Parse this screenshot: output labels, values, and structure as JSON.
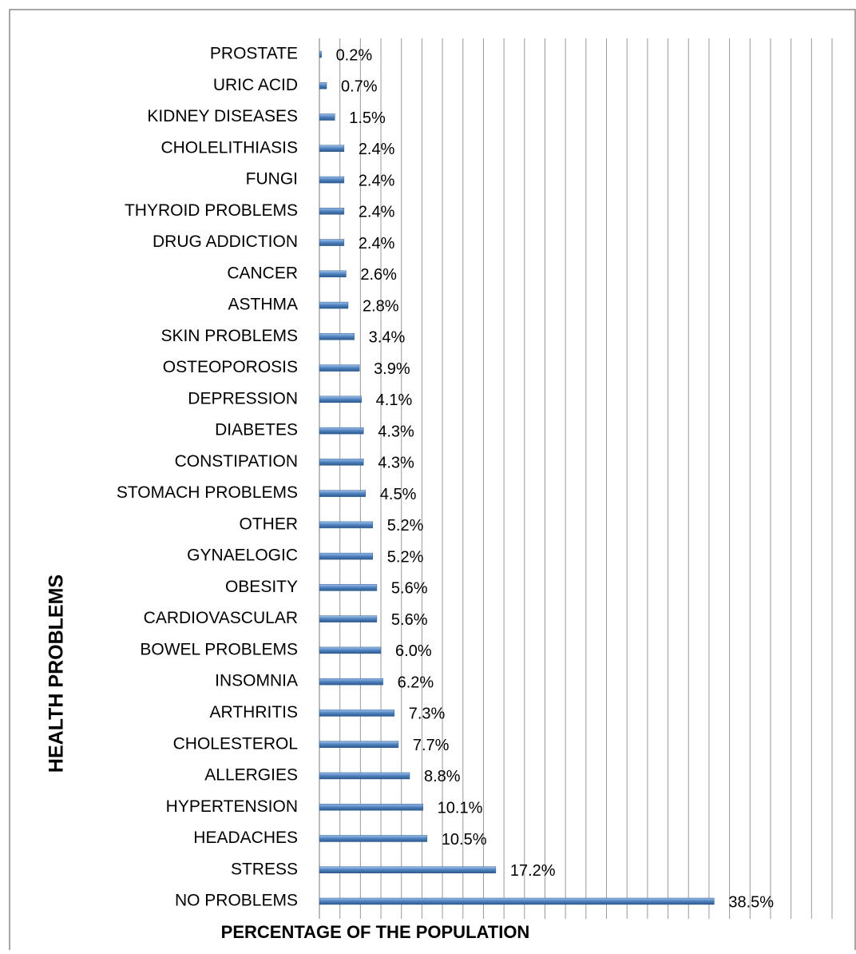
{
  "chart_data": {
    "type": "bar",
    "orientation": "horizontal",
    "x_label": "PERCENTAGE OF THE POPULATION",
    "y_label": "HEALTH  PROBLEMS",
    "categories": [
      "PROSTATE",
      "URIC ACID",
      "KIDNEY DISEASES",
      "CHOLELITHIASIS",
      "FUNGI",
      "THYROID PROBLEMS",
      "DRUG ADDICTION",
      "CANCER",
      "ASTHMA",
      "SKIN PROBLEMS",
      "OSTEOPOROSIS",
      "DEPRESSION",
      "DIABETES",
      "CONSTIPATION",
      "STOMACH PROBLEMS",
      "OTHER",
      "GYNAELOGIC",
      "OBESITY",
      "CARDIOVASCULAR",
      "BOWEL PROBLEMS",
      "INSOMNIA",
      "ARTHRITIS",
      "CHOLESTEROL",
      "ALLERGIES",
      "HYPERTENSION",
      "HEADACHES",
      "STRESS",
      "NO PROBLEMS"
    ],
    "values": [
      0.2,
      0.7,
      1.5,
      2.4,
      2.4,
      2.4,
      2.4,
      2.6,
      2.8,
      3.4,
      3.9,
      4.1,
      4.3,
      4.3,
      4.5,
      5.2,
      5.2,
      5.6,
      5.6,
      6.0,
      6.2,
      7.3,
      7.7,
      8.8,
      10.1,
      10.5,
      17.2,
      38.5
    ],
    "value_labels": [
      "0.2%",
      "0.7%",
      "1.5%",
      "2.4%",
      "2.4%",
      "2.4%",
      "2.4%",
      "2.6%",
      "2.8%",
      "3.4%",
      "3.9%",
      "4.1%",
      "4.3%",
      "4.3%",
      "4.5%",
      "5.2%",
      "5.2%",
      "5.6%",
      "5.6%",
      "6.0%",
      "6.2%",
      "7.3%",
      "7.7%",
      "8.8%",
      "10.1%",
      "10.5%",
      "17.2%",
      "38.5%"
    ],
    "color": "#4f81bd",
    "xlim": [
      0,
      50
    ],
    "xticks": [
      0,
      2,
      4,
      6,
      8,
      10,
      12,
      14,
      16,
      18,
      20,
      22,
      24,
      26,
      28,
      30,
      32,
      34,
      36,
      38,
      40,
      42,
      44,
      46,
      48,
      50
    ],
    "grid": true
  }
}
